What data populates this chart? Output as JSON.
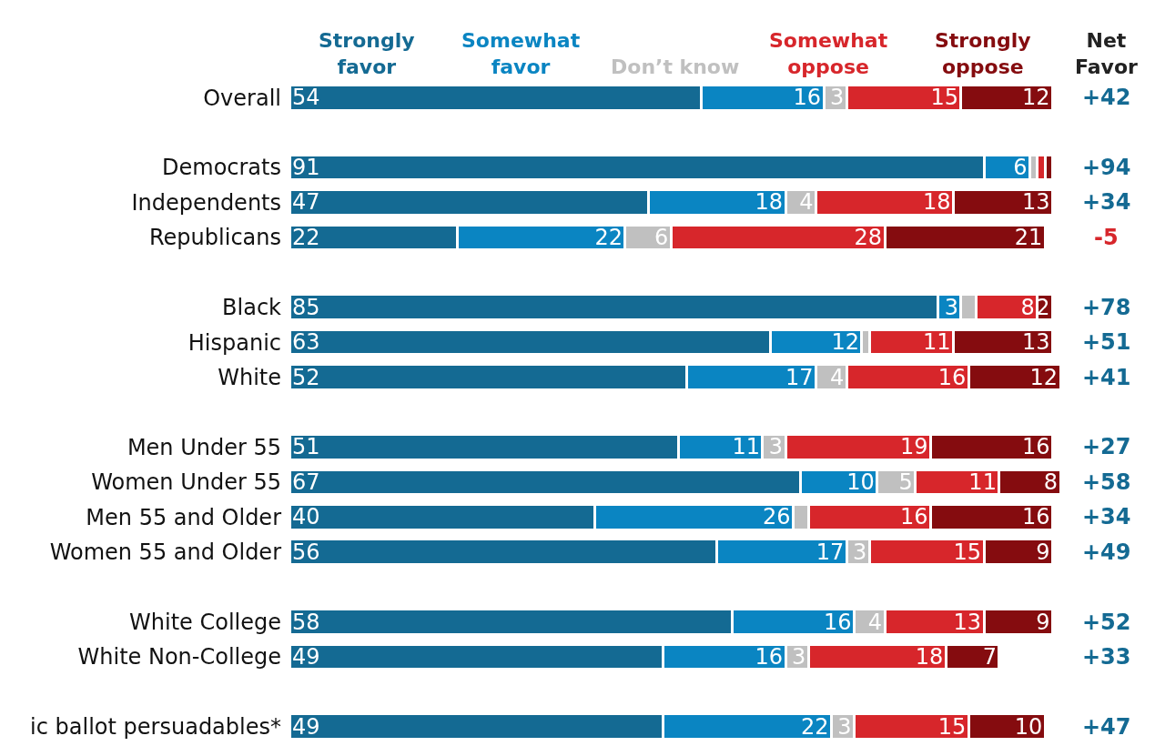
{
  "chart_data": {
    "type": "bar",
    "orientation": "horizontal",
    "stacked": true,
    "legend": "top",
    "tick_labels": "y",
    "data_labels": true,
    "xlim": [
      0,
      101
    ],
    "categories": [
      "Overall",
      null,
      "Democrats",
      "Independents",
      "Republicans",
      null,
      "Black",
      "Hispanic",
      "White",
      null,
      "Men Under 55",
      "Women Under 55",
      "Men 55 and Older",
      "Women 55 and Older",
      null,
      "White College",
      "White Non-College",
      null,
      "ic ballot persuadables*"
    ],
    "series": [
      {
        "name": "Strongly\nfavor",
        "color": "#146a93",
        "values": [
          54,
          null,
          91,
          47,
          22,
          null,
          85,
          63,
          52,
          null,
          51,
          67,
          40,
          56,
          null,
          58,
          49,
          null,
          49
        ],
        "value_labels": [
          "54",
          null,
          "91",
          "47",
          "22",
          null,
          "85",
          "63",
          "52",
          null,
          "51",
          "67",
          "40",
          "56",
          null,
          "58",
          "49",
          null,
          "49"
        ]
      },
      {
        "name": "Somewhat\nfavor",
        "color": "#0a85c2",
        "values": [
          16,
          null,
          6,
          18,
          22,
          null,
          3,
          12,
          17,
          null,
          11,
          10,
          26,
          17,
          null,
          16,
          16,
          null,
          22
        ],
        "value_labels": [
          "16",
          null,
          "6",
          "18",
          "22",
          null,
          "3",
          "12",
          "17",
          null,
          "11",
          "10",
          "26",
          "17",
          null,
          "16",
          "16",
          null,
          "22"
        ]
      },
      {
        "name": "Don’t know",
        "color": "#c0c0c0",
        "values": [
          3,
          null,
          1,
          4,
          6,
          null,
          2,
          1,
          4,
          null,
          3,
          5,
          2,
          3,
          null,
          4,
          3,
          null,
          3
        ],
        "value_labels": [
          "3",
          null,
          null,
          "4",
          "6",
          null,
          null,
          null,
          "4",
          null,
          "3",
          "5",
          null,
          "3",
          null,
          "4",
          "3",
          null,
          "3"
        ]
      },
      {
        "name": "Somewhat\noppose",
        "color": "#d7262b",
        "values": [
          15,
          null,
          1,
          18,
          28,
          null,
          8,
          11,
          16,
          null,
          19,
          11,
          16,
          15,
          null,
          13,
          18,
          null,
          15
        ],
        "value_labels": [
          "15",
          null,
          null,
          "18",
          "28",
          null,
          "8",
          "11",
          "16",
          null,
          "19",
          "11",
          "16",
          "15",
          null,
          "13",
          "18",
          null,
          "15"
        ]
      },
      {
        "name": "Strongly\noppose",
        "color": "#850c0f",
        "values": [
          12,
          null,
          1,
          13,
          21,
          null,
          2,
          13,
          12,
          null,
          16,
          8,
          16,
          9,
          null,
          9,
          7,
          null,
          10
        ],
        "value_labels": [
          "12",
          null,
          null,
          "13",
          "21",
          null,
          "2",
          "13",
          "12",
          null,
          "16",
          "8",
          "16",
          "9",
          null,
          "9",
          "7",
          null,
          "10"
        ]
      }
    ],
    "annotations": [
      "Net\nFavor",
      "+42",
      "+94",
      "+34",
      "-5",
      "+78",
      "+51",
      "+41",
      "+27",
      "+58",
      "+34",
      "+49",
      "+52",
      "+33",
      "+47"
    ]
  }
}
